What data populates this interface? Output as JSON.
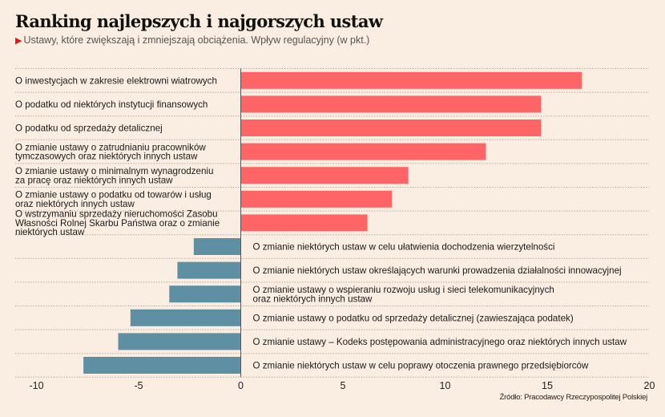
{
  "header": {
    "title": "Ranking najlepszych i najgorszych ustaw",
    "subtitle_marker": "▶",
    "subtitle": "Ustawy, które zwiększają i zmniejszają obciążenia. Wpływ regulacyjny (w pkt.)"
  },
  "source": "Źródło: Pracodawcy Rzeczypospolitej Polskiej",
  "colors": {
    "positive": "#ff6467",
    "negative": "#5f8fa3",
    "background": "#faede1"
  },
  "chart_data": {
    "type": "bar",
    "orientation": "horizontal",
    "title": "Ranking najlepszych i najgorszych ustaw",
    "subtitle": "Ustawy, które zwiększają i zmniejszają obciążenia. Wpływ regulacyjny (w pkt.)",
    "xlabel": "",
    "ylabel": "",
    "xlim": [
      -10,
      20
    ],
    "xticks": [
      -10,
      -5,
      0,
      5,
      10,
      15,
      20
    ],
    "xtick_labels": [
      "-10",
      "-5",
      "0",
      "5",
      "10",
      "15",
      "20"
    ],
    "grid": "dotted horizontal separators",
    "categories": [
      [
        "O inwestycjach w zakresie elektrowni wiatrowych"
      ],
      [
        "O podatku od niektórych instytucji finansowych"
      ],
      [
        "O podatku od sprzedaży detalicznej"
      ],
      [
        "O zmianie ustawy o zatrudnianiu pracowników",
        "tymczasowych oraz niektórych innych ustaw"
      ],
      [
        "O zmianie ustawy o minimalnym wynagrodzeniu",
        "za pracę oraz niektórych innych ustaw"
      ],
      [
        "O zmianie ustawy o podatku od towarów i usług",
        "oraz niektórych innych ustaw"
      ],
      [
        "O wstrzymaniu sprzedaży nieruchomości Zasobu",
        "Własności Rolnej Skarbu Państwa oraz o zmianie",
        "niektórych ustaw"
      ],
      [
        "O zmianie niektórych ustaw w celu ułatwienia dochodzenia wierzytelności"
      ],
      [
        "O zmianie niektórych ustaw określających warunki prowadzenia działalności innowacyjnej"
      ],
      [
        "O zmianie ustawy o wspieraniu rozwoju usług i sieci telekomunikacyjnych",
        "oraz niektórych innych ustaw"
      ],
      [
        "O zmianie ustawy o podatku od sprzedaży detalicznej (zawieszająca podatek)"
      ],
      [
        "O zmianie ustawy – Kodeks postępowania administracyjnego oraz niektórych innych ustaw"
      ],
      [
        "O zmianie niektórych ustaw w celu poprawy otoczenia prawnego przedsiębiorców"
      ]
    ],
    "values": [
      16.7,
      14.7,
      14.7,
      12.0,
      8.2,
      7.4,
      6.2,
      -2.3,
      -3.1,
      -3.5,
      -5.4,
      -6.0,
      -7.7
    ]
  }
}
